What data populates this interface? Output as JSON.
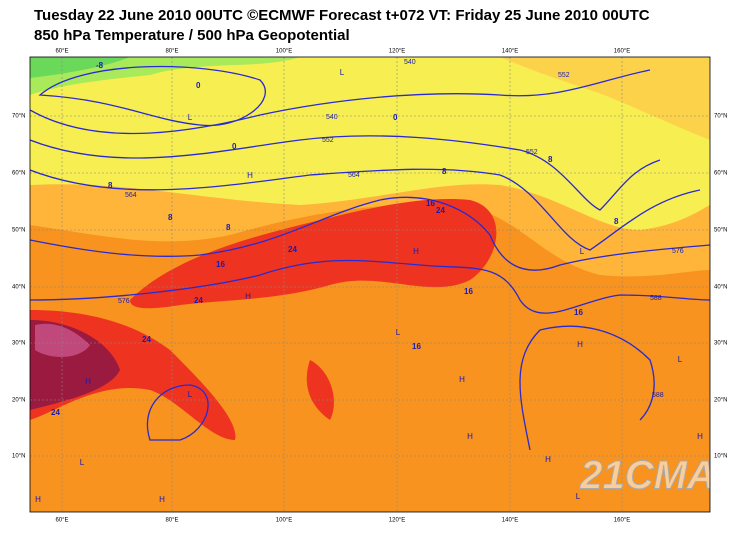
{
  "header": {
    "title": "Tuesday 22 June 2010 00UTC ©ECMWF Forecast t+072 VT: Friday 25 June 2010 00UTC",
    "subtitle": "850 hPa Temperature / 500 hPa Geopotential"
  },
  "map": {
    "longitude_labels": [
      "60°E",
      "80°E",
      "100°E",
      "120°E",
      "140°E",
      "160°E"
    ],
    "latitude_labels": [
      "70°N",
      "60°N",
      "50°N",
      "40°N",
      "30°N",
      "20°N",
      "10°N"
    ],
    "temperature_labels": [
      "-8",
      "0",
      "0",
      "0",
      "8",
      "8",
      "8",
      "8",
      "8",
      "8",
      "16",
      "16",
      "16",
      "16",
      "16",
      "24",
      "24",
      "24",
      "24",
      "24"
    ],
    "geopotential_labels": [
      "540",
      "540",
      "552",
      "552",
      "552",
      "564",
      "564",
      "576",
      "576",
      "588",
      "588"
    ],
    "pressure_centres": [
      "L",
      "L",
      "H",
      "L",
      "H",
      "H",
      "L",
      "H",
      "H",
      "H",
      "L",
      "L",
      "H",
      "L",
      "H",
      "H",
      "H",
      "L",
      "H"
    ],
    "watermark": "21CMA"
  }
}
